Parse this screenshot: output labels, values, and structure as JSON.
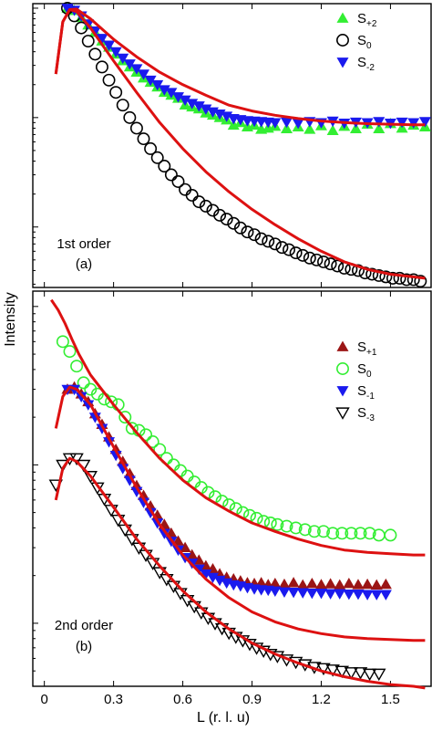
{
  "chart_data": {
    "type": "scatter",
    "xlabel": "L (r. l. u)",
    "ylabel": "Intensity",
    "x_ticks": [
      "0",
      "0.3",
      "0.6",
      "0.9",
      "1.2",
      "1.5"
    ],
    "xlim": [
      -0.05,
      1.68
    ],
    "panels": [
      {
        "label_line1": "1st order",
        "label_line2": "(a)",
        "yscale": "log",
        "series": [
          {
            "name": "S",
            "sub": "+2",
            "marker": "triangle-up",
            "color": "#33ee33",
            "x": [
              0.1,
              0.13,
              0.16,
              0.19,
              0.22,
              0.25,
              0.28,
              0.31,
              0.34,
              0.37,
              0.4,
              0.43,
              0.46,
              0.49,
              0.52,
              0.55,
              0.58,
              0.61,
              0.64,
              0.67,
              0.7,
              0.73,
              0.76,
              0.79,
              0.82,
              0.85,
              0.88,
              0.91,
              0.94,
              0.97,
              1.0,
              1.05,
              1.1,
              1.15,
              1.2,
              1.25,
              1.3,
              1.35,
              1.4,
              1.45,
              1.5,
              1.55,
              1.6,
              1.65
            ],
            "y": [
              1.0,
              0.95,
              0.82,
              0.7,
              0.6,
              0.5,
              0.44,
              0.38,
              0.33,
              0.29,
              0.26,
              0.23,
              0.21,
              0.19,
              0.17,
              0.16,
              0.15,
              0.13,
              0.125,
              0.12,
              0.11,
              0.105,
              0.1,
              0.095,
              0.085,
              0.09,
              0.082,
              0.085,
              0.078,
              0.08,
              0.083,
              0.079,
              0.082,
              0.078,
              0.084,
              0.076,
              0.083,
              0.079,
              0.087,
              0.079,
              0.088,
              0.08,
              0.085,
              0.082
            ]
          },
          {
            "name": "S",
            "sub": "0",
            "marker": "circle",
            "color": "#000000",
            "x": [
              0.1,
              0.13,
              0.16,
              0.19,
              0.22,
              0.25,
              0.28,
              0.31,
              0.34,
              0.37,
              0.4,
              0.43,
              0.46,
              0.49,
              0.52,
              0.55,
              0.58,
              0.61,
              0.64,
              0.67,
              0.7,
              0.73,
              0.76,
              0.79,
              0.82,
              0.85,
              0.88,
              0.91,
              0.94,
              0.97,
              1.0,
              1.03,
              1.06,
              1.09,
              1.12,
              1.15,
              1.18,
              1.21,
              1.24,
              1.27,
              1.3,
              1.33,
              1.36,
              1.39,
              1.42,
              1.45,
              1.48,
              1.51,
              1.54,
              1.57,
              1.6,
              1.63
            ],
            "y": [
              1.0,
              0.85,
              0.66,
              0.5,
              0.38,
              0.29,
              0.22,
              0.17,
              0.13,
              0.1,
              0.08,
              0.064,
              0.052,
              0.043,
              0.036,
              0.03,
              0.026,
              0.022,
              0.0195,
              0.017,
              0.0155,
              0.0142,
              0.0128,
              0.0118,
              0.0108,
              0.0098,
              0.009,
              0.0085,
              0.0078,
              0.0074,
              0.007,
              0.0065,
              0.0062,
              0.0058,
              0.0055,
              0.0052,
              0.005,
              0.0048,
              0.0046,
              0.0044,
              0.0042,
              0.0041,
              0.004,
              0.0038,
              0.0037,
              0.0036,
              0.0035,
              0.0034,
              0.0034,
              0.0033,
              0.0033,
              0.0032
            ]
          },
          {
            "name": "S",
            "sub": "-2",
            "marker": "triangle-down",
            "color": "#1a1aee",
            "x": [
              0.1,
              0.13,
              0.16,
              0.19,
              0.22,
              0.25,
              0.28,
              0.31,
              0.34,
              0.37,
              0.4,
              0.43,
              0.46,
              0.49,
              0.52,
              0.55,
              0.58,
              0.61,
              0.64,
              0.67,
              0.7,
              0.73,
              0.76,
              0.79,
              0.82,
              0.85,
              0.88,
              0.91,
              0.94,
              0.97,
              1.0,
              1.05,
              1.1,
              1.15,
              1.2,
              1.25,
              1.3,
              1.35,
              1.4,
              1.45,
              1.5,
              1.55,
              1.6,
              1.65
            ],
            "y": [
              1.0,
              0.96,
              0.85,
              0.72,
              0.62,
              0.53,
              0.46,
              0.4,
              0.35,
              0.31,
              0.28,
              0.25,
              0.22,
              0.2,
              0.18,
              0.17,
              0.155,
              0.145,
              0.135,
              0.128,
              0.12,
              0.113,
              0.108,
              0.103,
              0.098,
              0.096,
              0.094,
              0.093,
              0.092,
              0.091,
              0.09,
              0.091,
              0.089,
              0.092,
              0.09,
              0.093,
              0.089,
              0.091,
              0.09,
              0.092,
              0.089,
              0.091,
              0.09,
              0.092
            ]
          }
        ],
        "fit_curves": [
          {
            "x": [
              0.05,
              0.08,
              0.11,
              0.14,
              0.2,
              0.3,
              0.4,
              0.5,
              0.6,
              0.7,
              0.8,
              0.9,
              1.0,
              1.1,
              1.2,
              1.3,
              1.4,
              1.5,
              1.6,
              1.65
            ],
            "y": [
              0.25,
              0.75,
              0.97,
              0.98,
              0.8,
              0.52,
              0.36,
              0.26,
              0.2,
              0.16,
              0.13,
              0.115,
              0.105,
              0.098,
              0.093,
              0.09,
              0.088,
              0.087,
              0.086,
              0.086
            ]
          },
          {
            "x": [
              0.05,
              0.08,
              0.11,
              0.14,
              0.2,
              0.3,
              0.4,
              0.5,
              0.6,
              0.7,
              0.8,
              0.9,
              1.0,
              1.1,
              1.2,
              1.3,
              1.4,
              1.5,
              1.6,
              1.65
            ],
            "y": [
              0.25,
              0.75,
              0.97,
              0.93,
              0.66,
              0.33,
              0.17,
              0.09,
              0.052,
              0.032,
              0.021,
              0.0145,
              0.0105,
              0.0078,
              0.006,
              0.0048,
              0.0041,
              0.0037,
              0.0035,
              0.0034
            ]
          }
        ]
      },
      {
        "label_line1": "2nd order",
        "label_line2": "(b)",
        "yscale": "log",
        "series": [
          {
            "name": "S",
            "sub": "+1",
            "marker": "triangle-up",
            "color": "#9b1515",
            "x": [
              0.1,
              0.13,
              0.16,
              0.19,
              0.22,
              0.25,
              0.28,
              0.31,
              0.34,
              0.37,
              0.4,
              0.43,
              0.46,
              0.49,
              0.52,
              0.55,
              0.58,
              0.61,
              0.64,
              0.67,
              0.7,
              0.73,
              0.76,
              0.79,
              0.82,
              0.85,
              0.88,
              0.91,
              0.94,
              0.97,
              1.0,
              1.04,
              1.08,
              1.12,
              1.16,
              1.2,
              1.24,
              1.28,
              1.32,
              1.36,
              1.4,
              1.44,
              1.48
            ],
            "y": [
              0.3,
              0.31,
              0.28,
              0.25,
              0.21,
              0.18,
              0.15,
              0.125,
              0.105,
              0.088,
              0.074,
              0.064,
              0.055,
              0.048,
              0.042,
              0.037,
              0.033,
              0.03,
              0.027,
              0.025,
              0.023,
              0.022,
              0.0205,
              0.0195,
              0.019,
              0.0185,
              0.018,
              0.0178,
              0.018,
              0.0175,
              0.0178,
              0.0176,
              0.018,
              0.0174,
              0.0178,
              0.0175,
              0.0177,
              0.0174,
              0.0178,
              0.0175,
              0.0176,
              0.0174,
              0.0176
            ]
          },
          {
            "name": "S",
            "sub": "0",
            "marker": "circle",
            "color": "#33ee33",
            "x": [
              0.08,
              0.11,
              0.14,
              0.17,
              0.2,
              0.23,
              0.26,
              0.29,
              0.32,
              0.35,
              0.38,
              0.41,
              0.44,
              0.47,
              0.5,
              0.53,
              0.56,
              0.59,
              0.62,
              0.65,
              0.68,
              0.71,
              0.74,
              0.77,
              0.8,
              0.83,
              0.86,
              0.89,
              0.92,
              0.95,
              0.98,
              1.01,
              1.05,
              1.09,
              1.13,
              1.17,
              1.21,
              1.25,
              1.29,
              1.33,
              1.37,
              1.41,
              1.45,
              1.5
            ],
            "y": [
              0.6,
              0.52,
              0.42,
              0.33,
              0.3,
              0.28,
              0.26,
              0.25,
              0.24,
              0.2,
              0.17,
              0.165,
              0.155,
              0.14,
              0.125,
              0.11,
              0.1,
              0.092,
              0.085,
              0.078,
              0.072,
              0.067,
              0.063,
              0.059,
              0.056,
              0.053,
              0.05,
              0.048,
              0.046,
              0.044,
              0.043,
              0.042,
              0.041,
              0.04,
              0.039,
              0.038,
              0.038,
              0.037,
              0.037,
              0.037,
              0.037,
              0.037,
              0.036,
              0.036
            ]
          },
          {
            "name": "S",
            "sub": "-1",
            "marker": "triangle-down",
            "color": "#1a1aee",
            "x": [
              0.1,
              0.13,
              0.16,
              0.19,
              0.22,
              0.25,
              0.28,
              0.31,
              0.34,
              0.37,
              0.4,
              0.43,
              0.46,
              0.49,
              0.52,
              0.55,
              0.58,
              0.61,
              0.64,
              0.67,
              0.7,
              0.73,
              0.76,
              0.79,
              0.82,
              0.85,
              0.88,
              0.91,
              0.94,
              0.97,
              1.0,
              1.04,
              1.08,
              1.12,
              1.16,
              1.2,
              1.24,
              1.28,
              1.32,
              1.36,
              1.4,
              1.44,
              1.48
            ],
            "y": [
              0.3,
              0.3,
              0.27,
              0.24,
              0.2,
              0.17,
              0.14,
              0.115,
              0.095,
              0.08,
              0.068,
              0.058,
              0.05,
              0.043,
              0.037,
              0.033,
              0.029,
              0.026,
              0.024,
              0.022,
              0.0205,
              0.0195,
              0.0187,
              0.018,
              0.0175,
              0.0172,
              0.0168,
              0.0165,
              0.0163,
              0.0162,
              0.016,
              0.0158,
              0.0157,
              0.0156,
              0.0155,
              0.0155,
              0.0154,
              0.0154,
              0.0153,
              0.0153,
              0.0152,
              0.0152,
              0.0152
            ]
          },
          {
            "name": "S",
            "sub": "-3",
            "marker": "triangle-down-open",
            "color": "#000000",
            "x": [
              0.05,
              0.08,
              0.11,
              0.14,
              0.17,
              0.2,
              0.23,
              0.26,
              0.29,
              0.32,
              0.35,
              0.38,
              0.41,
              0.44,
              0.47,
              0.5,
              0.53,
              0.56,
              0.59,
              0.62,
              0.65,
              0.68,
              0.71,
              0.74,
              0.77,
              0.8,
              0.83,
              0.86,
              0.89,
              0.92,
              0.95,
              0.98,
              1.01,
              1.05,
              1.09,
              1.13,
              1.17,
              1.21,
              1.25,
              1.29,
              1.33,
              1.37,
              1.41,
              1.45
            ],
            "y": [
              0.075,
              0.1,
              0.11,
              0.11,
              0.1,
              0.085,
              0.072,
              0.061,
              0.052,
              0.045,
              0.039,
              0.034,
              0.03,
              0.027,
              0.024,
              0.021,
              0.019,
              0.0172,
              0.0155,
              0.014,
              0.0128,
              0.0117,
              0.0108,
              0.01,
              0.0093,
              0.0087,
              0.0082,
              0.0078,
              0.0074,
              0.007,
              0.0067,
              0.0064,
              0.0062,
              0.0059,
              0.0057,
              0.0055,
              0.0053,
              0.0052,
              0.0051,
              0.005,
              0.0049,
              0.0049,
              0.0048,
              0.0048
            ]
          }
        ],
        "fit_curves": [
          {
            "x": [
              0.03,
              0.06,
              0.09,
              0.12,
              0.15,
              0.2,
              0.3,
              0.4,
              0.5,
              0.6,
              0.7,
              0.8,
              0.9,
              1.0,
              1.1,
              1.2,
              1.3,
              1.4,
              1.5,
              1.6,
              1.65
            ],
            "y": [
              1.1,
              0.95,
              0.78,
              0.62,
              0.5,
              0.37,
              0.24,
              0.16,
              0.11,
              0.08,
              0.062,
              0.051,
              0.043,
              0.038,
              0.034,
              0.031,
              0.029,
              0.028,
              0.0275,
              0.027,
              0.027
            ]
          },
          {
            "x": [
              0.05,
              0.08,
              0.11,
              0.14,
              0.2,
              0.3,
              0.4,
              0.5,
              0.6,
              0.7,
              0.8,
              0.9,
              1.0,
              1.1,
              1.2,
              1.3,
              1.4,
              1.5,
              1.6,
              1.65
            ],
            "y": [
              0.17,
              0.27,
              0.31,
              0.3,
              0.24,
              0.13,
              0.072,
              0.042,
              0.027,
              0.019,
              0.0145,
              0.0118,
              0.0102,
              0.0092,
              0.0086,
              0.0082,
              0.008,
              0.0079,
              0.0078,
              0.0078
            ]
          },
          {
            "x": [
              0.05,
              0.08,
              0.11,
              0.14,
              0.2,
              0.3,
              0.4,
              0.5,
              0.6,
              0.7,
              0.8,
              0.9,
              1.0,
              1.1,
              1.2,
              1.3,
              1.4,
              1.5,
              1.6,
              1.65
            ],
            "y": [
              0.06,
              0.095,
              0.11,
              0.105,
              0.085,
              0.054,
              0.034,
              0.023,
              0.016,
              0.0118,
              0.0092,
              0.0075,
              0.0064,
              0.0056,
              0.005,
              0.0046,
              0.0043,
              0.0041,
              0.004,
              0.0039
            ]
          }
        ]
      }
    ],
    "fit_color": "#dd1111",
    "grid": false,
    "legend_position": "top-right"
  }
}
